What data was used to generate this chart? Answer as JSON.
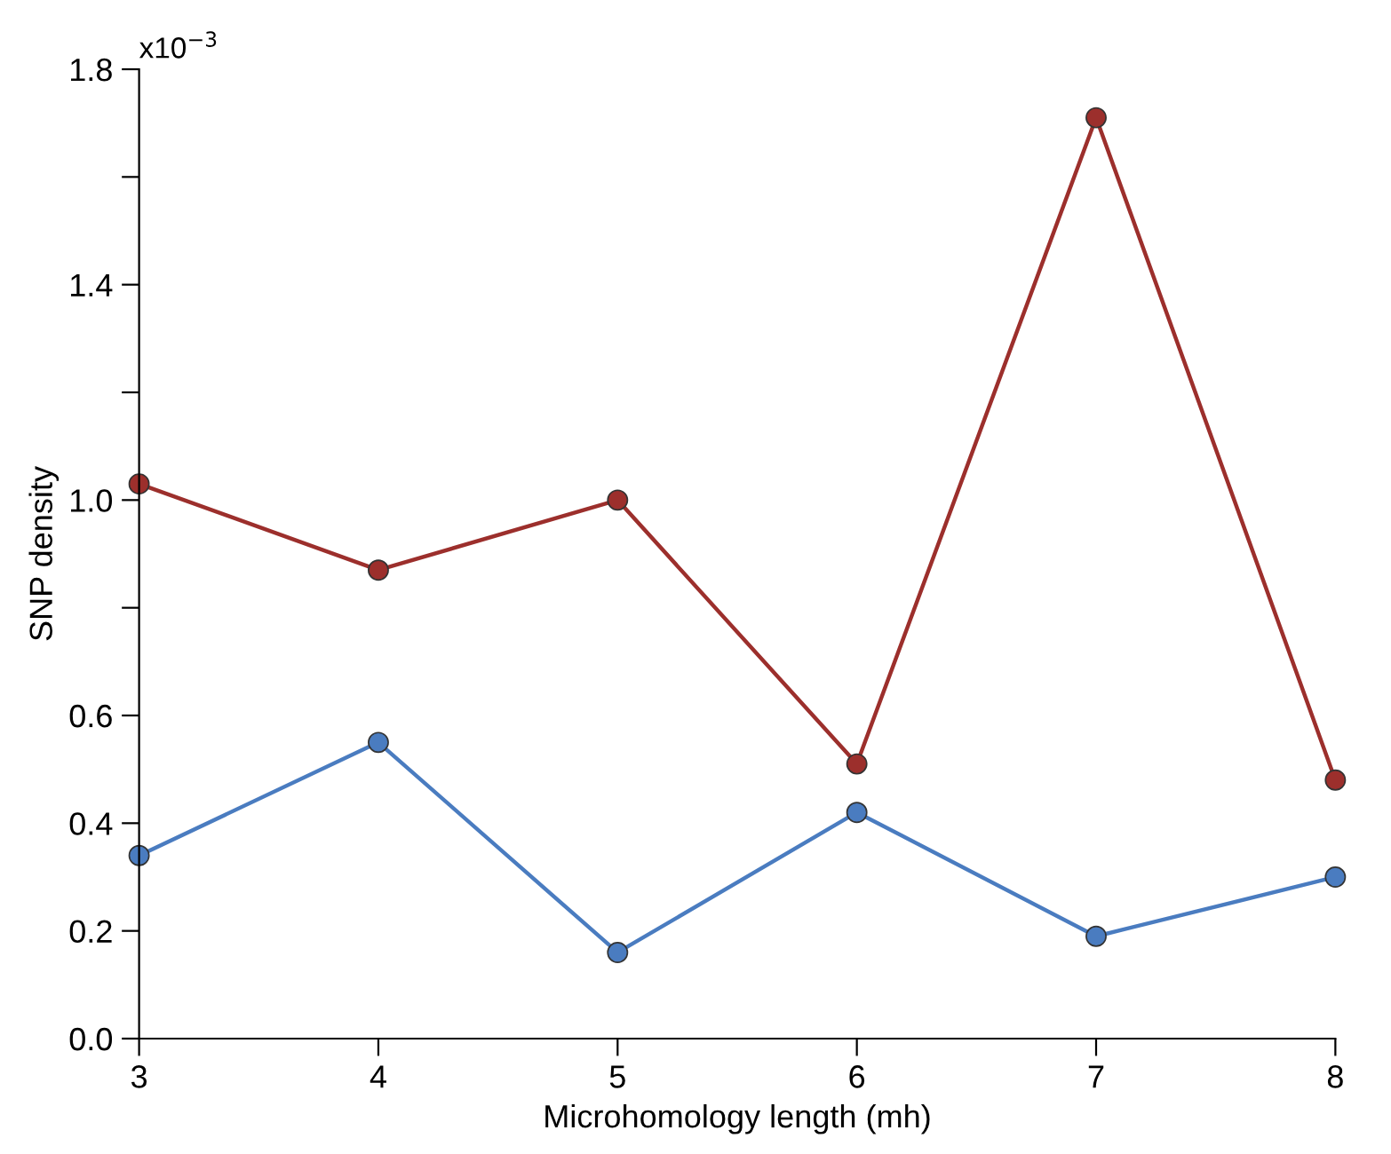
{
  "chart_data": {
    "type": "line",
    "xlabel": "Microhomology length (mh)",
    "ylabel": "SNP density",
    "annotations": [
      "x10$^{−3}$"
    ],
    "x": [
      3,
      4,
      5,
      6,
      7,
      8
    ],
    "series": [
      {
        "color": "#9c2f2c",
        "values": [
          1.03,
          0.87,
          1.0,
          0.51,
          1.71,
          0.48
        ]
      },
      {
        "color": "#4a7cc0",
        "values": [
          0.34,
          0.55,
          0.16,
          0.42,
          0.19,
          0.3
        ]
      }
    ],
    "xlim": [
      3,
      8
    ],
    "xticks": [
      3,
      4,
      5,
      6,
      7,
      8
    ],
    "ylim": [
      0,
      1.8
    ],
    "yticks": [
      {
        "value": 0,
        "label": "0.0"
      },
      0.2,
      0.4,
      0.6,
      {
        "value": 0.8,
        "label": null
      },
      {
        "value": 1,
        "label": "1.0"
      },
      {
        "value": 1.2,
        "label": null
      },
      1.4,
      {
        "value": 1.6,
        "label": null
      },
      1.8
    ],
    "marker": "circle",
    "line_style": "solid",
    "grid": false,
    "legend": false
  }
}
